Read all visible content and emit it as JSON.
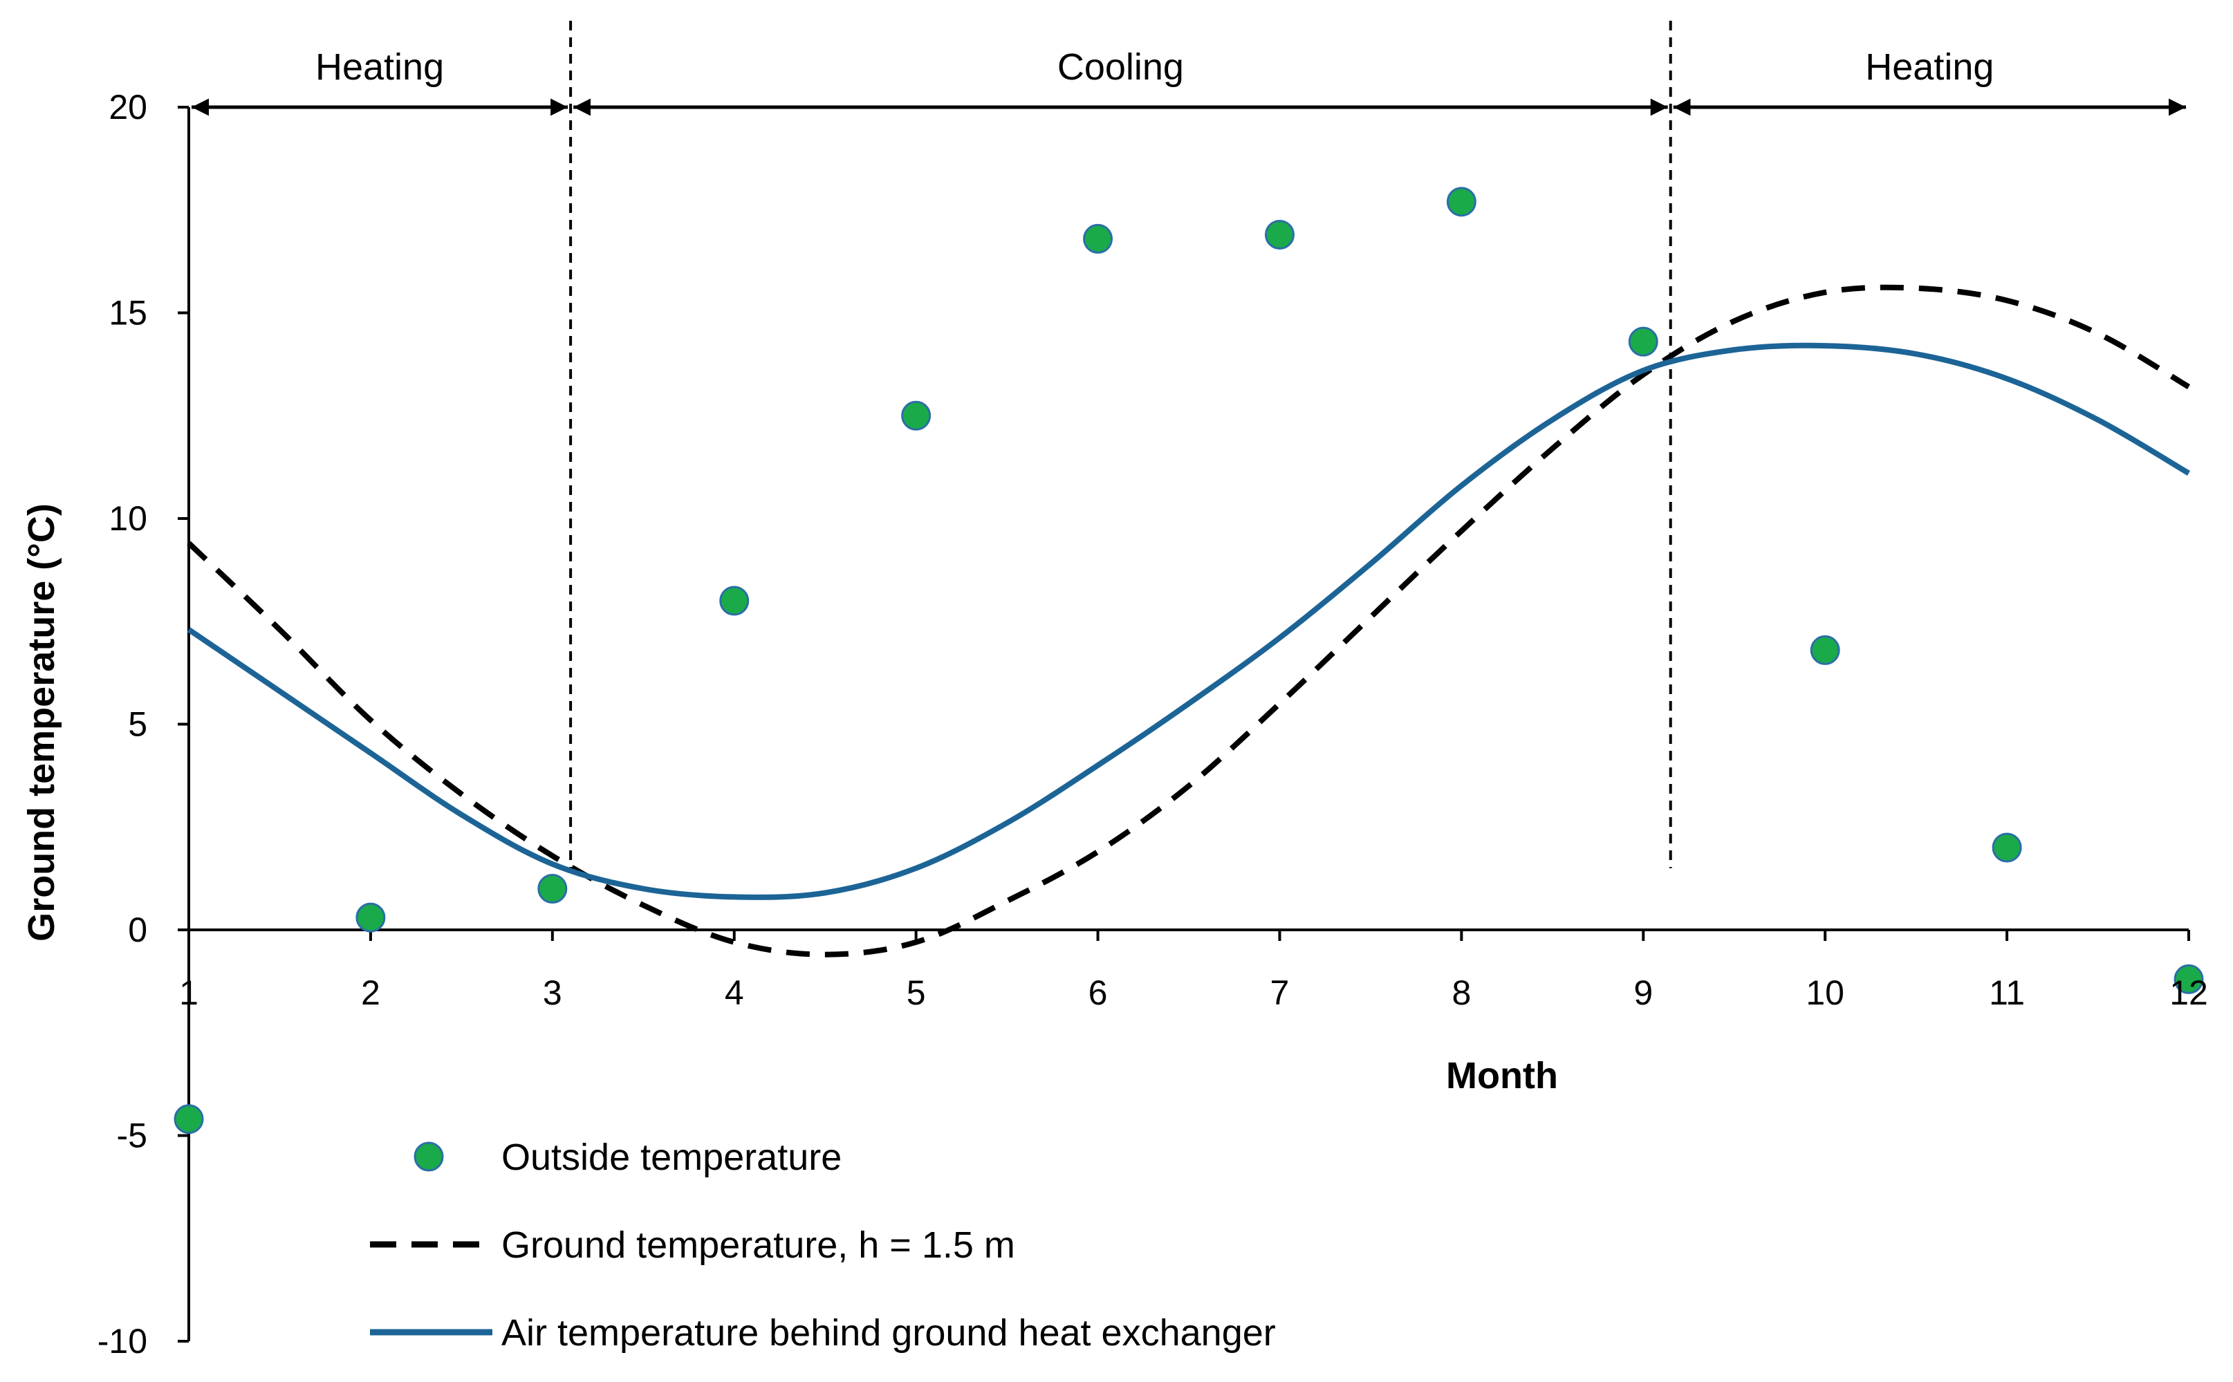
{
  "chart_data": {
    "type": "line",
    "title": "",
    "xlabel": "Month",
    "ylabel": "Ground temperature (°C)",
    "xlim": [
      1,
      12
    ],
    "ylim": [
      -10,
      20
    ],
    "x_ticks": [
      1,
      2,
      3,
      4,
      5,
      6,
      7,
      8,
      9,
      10,
      11,
      12
    ],
    "y_ticks": [
      -10,
      -5,
      0,
      5,
      10,
      15,
      20
    ],
    "grid": false,
    "legend_position": "bottom-center",
    "series": [
      {
        "name": "Outside temperature",
        "style": "markers",
        "color": "#1aaa4a",
        "edge_color": "#2a6fa6",
        "x": [
          1,
          2,
          3,
          4,
          5,
          6,
          7,
          8,
          9,
          10,
          11,
          12
        ],
        "values": [
          -4.6,
          0.3,
          1.0,
          8.0,
          12.5,
          16.8,
          16.9,
          17.7,
          14.3,
          6.8,
          2.0,
          -1.2
        ]
      },
      {
        "name": "Ground temperature, h = 1.5 m",
        "style": "dashed",
        "color": "#000000",
        "x": [
          1,
          1.5,
          2,
          2.5,
          3,
          3.5,
          4,
          4.5,
          5,
          5.5,
          6,
          6.5,
          7,
          7.5,
          8,
          8.5,
          9,
          9.5,
          10,
          10.5,
          11,
          11.5,
          12
        ],
        "values": [
          9.4,
          7.3,
          5.1,
          3.3,
          1.8,
          0.6,
          -0.3,
          -0.6,
          -0.3,
          0.7,
          1.9,
          3.5,
          5.5,
          7.6,
          9.7,
          11.7,
          13.5,
          14.8,
          15.5,
          15.6,
          15.3,
          14.5,
          13.2
        ]
      },
      {
        "name": "Air temperature behind ground heat exchanger",
        "style": "solid",
        "color": "#1c6496",
        "x": [
          1,
          1.5,
          2,
          2.5,
          3,
          3.5,
          4,
          4.5,
          5,
          5.5,
          6,
          6.5,
          7,
          7.5,
          8,
          8.5,
          9,
          9.5,
          10,
          10.5,
          11,
          11.5,
          12
        ],
        "values": [
          7.3,
          5.8,
          4.3,
          2.8,
          1.6,
          1.0,
          0.8,
          0.9,
          1.5,
          2.6,
          4.0,
          5.5,
          7.1,
          8.9,
          10.8,
          12.4,
          13.6,
          14.1,
          14.2,
          14.0,
          13.4,
          12.4,
          11.1
        ]
      }
    ],
    "season_boundaries": [
      3.1,
      9.15
    ],
    "season_spans": [
      {
        "label": "Heating",
        "from": 1,
        "to": 3.1
      },
      {
        "label": "Cooling",
        "from": 3.1,
        "to": 9.15
      },
      {
        "label": "Heating",
        "from": 9.15,
        "to": 12
      }
    ]
  }
}
